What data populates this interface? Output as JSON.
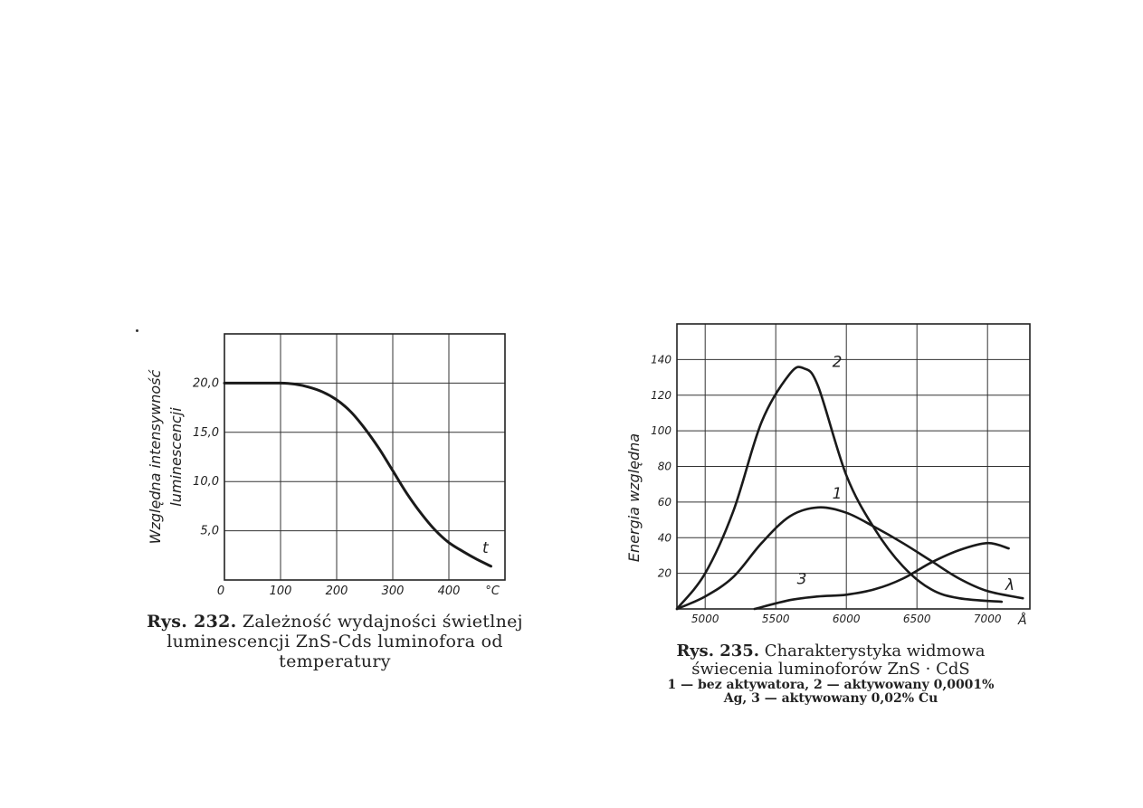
{
  "figures": [
    {
      "caption_number": "Rys. 232.",
      "caption_text": "Zależność wydajności świetlnej luminescencji ZnS-Cds luminofora od temperatury",
      "chart_data": {
        "type": "line",
        "ylabel_line1": "Względna intensywność",
        "ylabel_line2": "luminescencji",
        "x_ticks": [
          "0",
          "100",
          "200",
          "300",
          "400"
        ],
        "x_unit": "°C",
        "y_ticks": [
          "5,0",
          "10,0",
          "15,0",
          "20,0"
        ],
        "curve_label": "t",
        "xlim": [
          0,
          500
        ],
        "ylim": [
          0,
          25
        ],
        "grid": true,
        "series": [
          {
            "x": [
              0,
              50,
              100,
              125,
              150,
              175,
              200,
              225,
              250,
              275,
              300,
              325,
              350,
              375,
              400,
              425,
              450,
              475
            ],
            "y": [
              20.0,
              20.0,
              20.0,
              19.9,
              19.6,
              19.1,
              18.3,
              17.1,
              15.4,
              13.4,
              11.1,
              8.8,
              6.8,
              5.1,
              3.8,
              2.9,
              2.1,
              1.4
            ]
          }
        ]
      }
    },
    {
      "caption_number": "Rys. 235.",
      "caption_text_line1": "Charakterystyka widmowa",
      "caption_text_line2": "świecenia luminoforów ZnS · CdS",
      "legend_line1": "1 — bez aktywatora, 2 — aktywowany 0,0001%",
      "legend_line2": "Ag, 3 — aktywowany 0,02% Cu",
      "chart_data": {
        "type": "line",
        "ylabel": "Energia względna",
        "x_ticks": [
          "5000",
          "5500",
          "6000",
          "6500",
          "7000"
        ],
        "x_unit": "Å",
        "y_ticks": [
          "20",
          "40",
          "60",
          "80",
          "100",
          "120",
          "140"
        ],
        "lambda_label": "λ",
        "xlim": [
          4800,
          7300
        ],
        "ylim": [
          0,
          160
        ],
        "grid": true,
        "series": [
          {
            "name": "1",
            "x": [
              4800,
              5000,
              5200,
              5400,
              5600,
              5800,
              6000,
              6200,
              6400,
              6600,
              6800,
              7000,
              7250
            ],
            "y": [
              0,
              7,
              18,
              37,
              52,
              57,
              54,
              46,
              37,
              27,
              17,
              10,
              6
            ]
          },
          {
            "name": "2",
            "x": [
              4800,
              5000,
              5200,
              5400,
              5600,
              5700,
              5800,
              6000,
              6200,
              6400,
              6600,
              6800,
              7100
            ],
            "y": [
              0,
              20,
              55,
              105,
              132,
              135,
              125,
              75,
              45,
              24,
              11,
              6,
              4
            ]
          },
          {
            "name": "3",
            "x": [
              5350,
              5600,
              5800,
              6000,
              6200,
              6400,
              6600,
              6800,
              7000,
              7150
            ],
            "y": [
              0,
              5,
              7,
              8,
              11,
              17,
              26,
              33,
              37,
              34
            ]
          }
        ]
      }
    }
  ]
}
